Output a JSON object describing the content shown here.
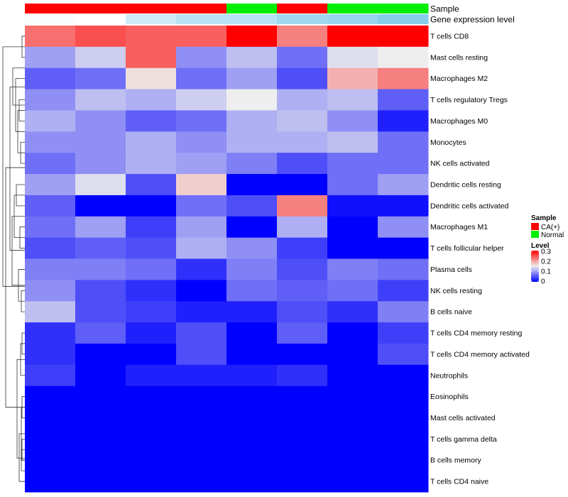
{
  "chart_data": {
    "type": "heatmap",
    "annotation_labels": {
      "sample": "Sample",
      "gene": "Gene expression level"
    },
    "legend": {
      "sample_title": "Sample",
      "sample_entries": [
        {
          "label": "CA(+)",
          "color": "#ff0000"
        },
        {
          "label": "Normal",
          "color": "#00ee00"
        }
      ],
      "level_title": "Level",
      "level_ticks": [
        "0.3",
        "0.2",
        "0.1",
        "0"
      ]
    },
    "columns": [
      {
        "sample": "CA(+)",
        "gene_level": 0.05
      },
      {
        "sample": "CA(+)",
        "gene_level": 0.0
      },
      {
        "sample": "CA(+)",
        "gene_level": 0.4
      },
      {
        "sample": "CA(+)",
        "gene_level": 0.6
      },
      {
        "sample": "Normal",
        "gene_level": 0.6
      },
      {
        "sample": "CA(+)",
        "gene_level": 0.8
      },
      {
        "sample": "Normal",
        "gene_level": 0.85
      },
      {
        "sample": "Normal",
        "gene_level": 1.0
      }
    ],
    "color_scale": {
      "min": 0,
      "mid": 0.15,
      "max": 0.3,
      "low": "#0000ff",
      "mid_color": "#eeeeee",
      "high": "#ff0000"
    },
    "rows": [
      {
        "label": "T cells CD8",
        "values": [
          0.23,
          0.25,
          0.24,
          0.24,
          0.3,
          0.22,
          0.3,
          0.3
        ]
      },
      {
        "label": "Mast cells resting",
        "values": [
          0.1,
          0.13,
          0.24,
          0.09,
          0.12,
          0.07,
          0.14,
          0.15
        ]
      },
      {
        "label": "Macrophages M2",
        "values": [
          0.06,
          0.07,
          0.16,
          0.07,
          0.1,
          0.05,
          0.19,
          0.22
        ]
      },
      {
        "label": "T cells regulatory  Tregs",
        "values": [
          0.09,
          0.12,
          0.11,
          0.13,
          0.15,
          0.11,
          0.12,
          0.06
        ]
      },
      {
        "label": "Macrophages M0",
        "values": [
          0.11,
          0.09,
          0.06,
          0.07,
          0.11,
          0.12,
          0.09,
          0.02
        ]
      },
      {
        "label": "Monocytes",
        "values": [
          0.09,
          0.09,
          0.11,
          0.09,
          0.11,
          0.11,
          0.12,
          0.07
        ]
      },
      {
        "label": "NK cells activated",
        "values": [
          0.07,
          0.09,
          0.11,
          0.1,
          0.08,
          0.05,
          0.07,
          0.07
        ]
      },
      {
        "label": "Dendritic cells resting",
        "values": [
          0.1,
          0.14,
          0.05,
          0.17,
          0.0,
          0.0,
          0.07,
          0.1
        ]
      },
      {
        "label": "Dendritic cells activated",
        "values": [
          0.06,
          0.0,
          0.0,
          0.07,
          0.05,
          0.22,
          0.01,
          0.01
        ]
      },
      {
        "label": "Macrophages M1",
        "values": [
          0.07,
          0.1,
          0.04,
          0.1,
          0.0,
          0.11,
          0.0,
          0.09
        ]
      },
      {
        "label": "T cells follicular helper",
        "values": [
          0.05,
          0.06,
          0.05,
          0.11,
          0.09,
          0.04,
          0.0,
          0.0
        ]
      },
      {
        "label": "Plasma cells",
        "values": [
          0.08,
          0.08,
          0.07,
          0.03,
          0.08,
          0.05,
          0.08,
          0.07
        ]
      },
      {
        "label": "NK cells resting",
        "values": [
          0.09,
          0.05,
          0.03,
          0.0,
          0.07,
          0.06,
          0.07,
          0.04
        ]
      },
      {
        "label": "B cells naive",
        "values": [
          0.12,
          0.05,
          0.04,
          0.02,
          0.02,
          0.05,
          0.03,
          0.08
        ]
      },
      {
        "label": "T cells CD4 memory resting",
        "values": [
          0.03,
          0.06,
          0.02,
          0.05,
          0.0,
          0.06,
          0.0,
          0.04
        ]
      },
      {
        "label": "T cells CD4 memory activated",
        "values": [
          0.03,
          0.0,
          0.0,
          0.05,
          0.0,
          0.0,
          0.0,
          0.05
        ]
      },
      {
        "label": "Neutrophils",
        "values": [
          0.04,
          0.0,
          0.02,
          0.02,
          0.02,
          0.03,
          0.0,
          0.0
        ]
      },
      {
        "label": "Eosinophils",
        "values": [
          0,
          0,
          0,
          0,
          0,
          0,
          0,
          0
        ]
      },
      {
        "label": "Mast cells activated",
        "values": [
          0,
          0,
          0,
          0,
          0,
          0,
          0,
          0
        ]
      },
      {
        "label": "T cells gamma delta",
        "values": [
          0,
          0,
          0,
          0,
          0,
          0,
          0,
          0
        ]
      },
      {
        "label": "B cells memory",
        "values": [
          0,
          0,
          0,
          0,
          0,
          0,
          0,
          0
        ]
      },
      {
        "label": "T cells CD4 naive",
        "values": [
          0,
          0,
          0,
          0,
          0,
          0,
          0,
          0
        ]
      }
    ]
  }
}
